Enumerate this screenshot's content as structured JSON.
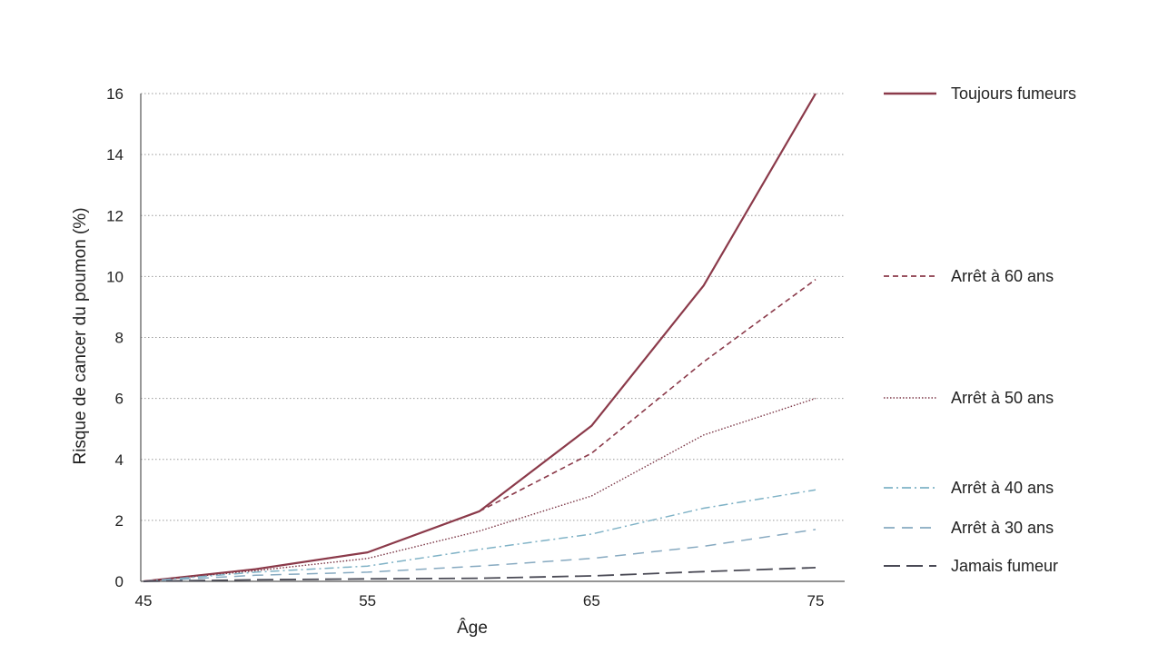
{
  "chart_data": {
    "type": "line",
    "xlabel": "Âge",
    "ylabel": "Risque de cancer du poumon (%)",
    "x_ticks": [
      "45",
      "55",
      "65",
      "75"
    ],
    "y_ticks": [
      "0",
      "2",
      "4",
      "6",
      "8",
      "10",
      "12",
      "14",
      "16"
    ],
    "xlim": [
      45,
      75
    ],
    "ylim": [
      0,
      16
    ],
    "grid": "horizontal dotted",
    "legend_position": "right",
    "series": [
      {
        "name": "Toujours fumeurs",
        "color": "#8b3a4a",
        "style": "solid",
        "x": [
          45,
          50,
          55,
          60,
          65,
          70,
          75
        ],
        "y": [
          0,
          0.4,
          0.95,
          2.3,
          5.1,
          9.7,
          16
        ]
      },
      {
        "name": "Arrêt à 60 ans",
        "color": "#8b3a4a",
        "style": "dashed",
        "x": [
          45,
          50,
          55,
          60,
          65,
          70,
          75
        ],
        "y": [
          0,
          0.4,
          0.95,
          2.3,
          4.2,
          7.2,
          9.9
        ]
      },
      {
        "name": "Arrêt à 50 ans",
        "color": "#7a3444",
        "style": "dotted",
        "x": [
          45,
          50,
          55,
          60,
          65,
          70,
          75
        ],
        "y": [
          0,
          0.35,
          0.75,
          1.65,
          2.8,
          4.8,
          6.0
        ]
      },
      {
        "name": "Arrêt à 40 ans",
        "color": "#7fb2c6",
        "style": "dashdot",
        "x": [
          45,
          50,
          55,
          60,
          65,
          70,
          75
        ],
        "y": [
          0,
          0.3,
          0.5,
          1.05,
          1.55,
          2.4,
          3.0
        ]
      },
      {
        "name": "Arrêt à 30 ans",
        "color": "#86a9c0",
        "style": "longdash",
        "x": [
          45,
          50,
          55,
          60,
          65,
          70,
          75
        ],
        "y": [
          0,
          0.2,
          0.3,
          0.5,
          0.75,
          1.15,
          1.7
        ]
      },
      {
        "name": "Jamais fumeur",
        "color": "#4a4a55",
        "style": "longdash2",
        "x": [
          45,
          50,
          55,
          60,
          65,
          70,
          75
        ],
        "y": [
          0,
          0.05,
          0.08,
          0.1,
          0.18,
          0.32,
          0.45
        ]
      }
    ]
  }
}
